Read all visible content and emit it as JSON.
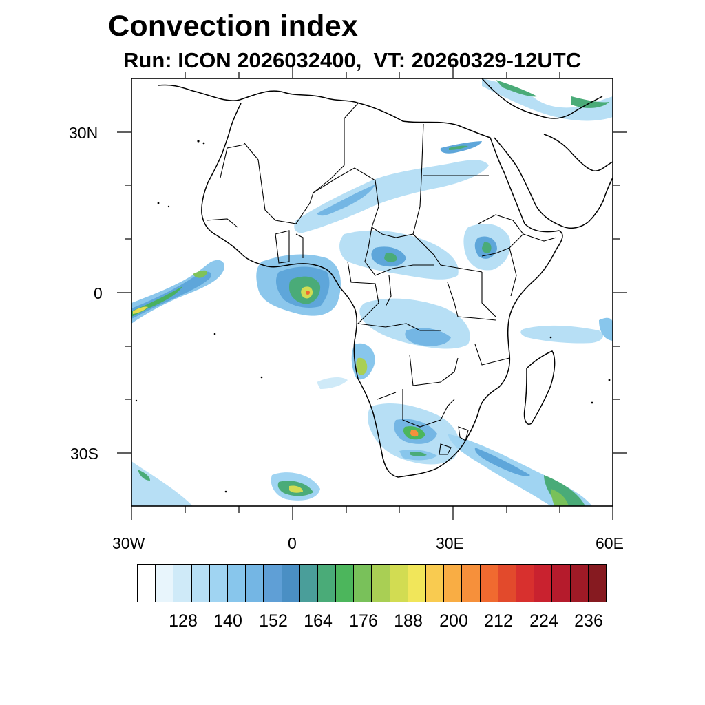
{
  "title": "Convection index",
  "subtitle": "Run: ICON 2026032400,  VT: 20260329-12UTC",
  "axes": {
    "lat_labels": [
      "30N",
      "0",
      "30S"
    ],
    "lon_labels": [
      "30W",
      "0",
      "30E",
      "60E"
    ]
  },
  "legend": {
    "colors": [
      "#ffffff",
      "#e8f5fc",
      "#cfeaf8",
      "#b7dff5",
      "#a0d4f2",
      "#88c6ec",
      "#74b6e4",
      "#5f9fd6",
      "#4a8fc4",
      "#4a9e9a",
      "#4aab78",
      "#4cb65c",
      "#79c15a",
      "#a9cf54",
      "#d2dc52",
      "#f1e65a",
      "#f9cb50",
      "#f9ad44",
      "#f6903b",
      "#f06a30",
      "#e24a2c",
      "#d8302e",
      "#c9222f",
      "#b51b2c",
      "#9f1a26",
      "#861a20"
    ],
    "labels": [
      "128",
      "140",
      "152",
      "164",
      "176",
      "188",
      "200",
      "212",
      "224",
      "236"
    ]
  }
}
